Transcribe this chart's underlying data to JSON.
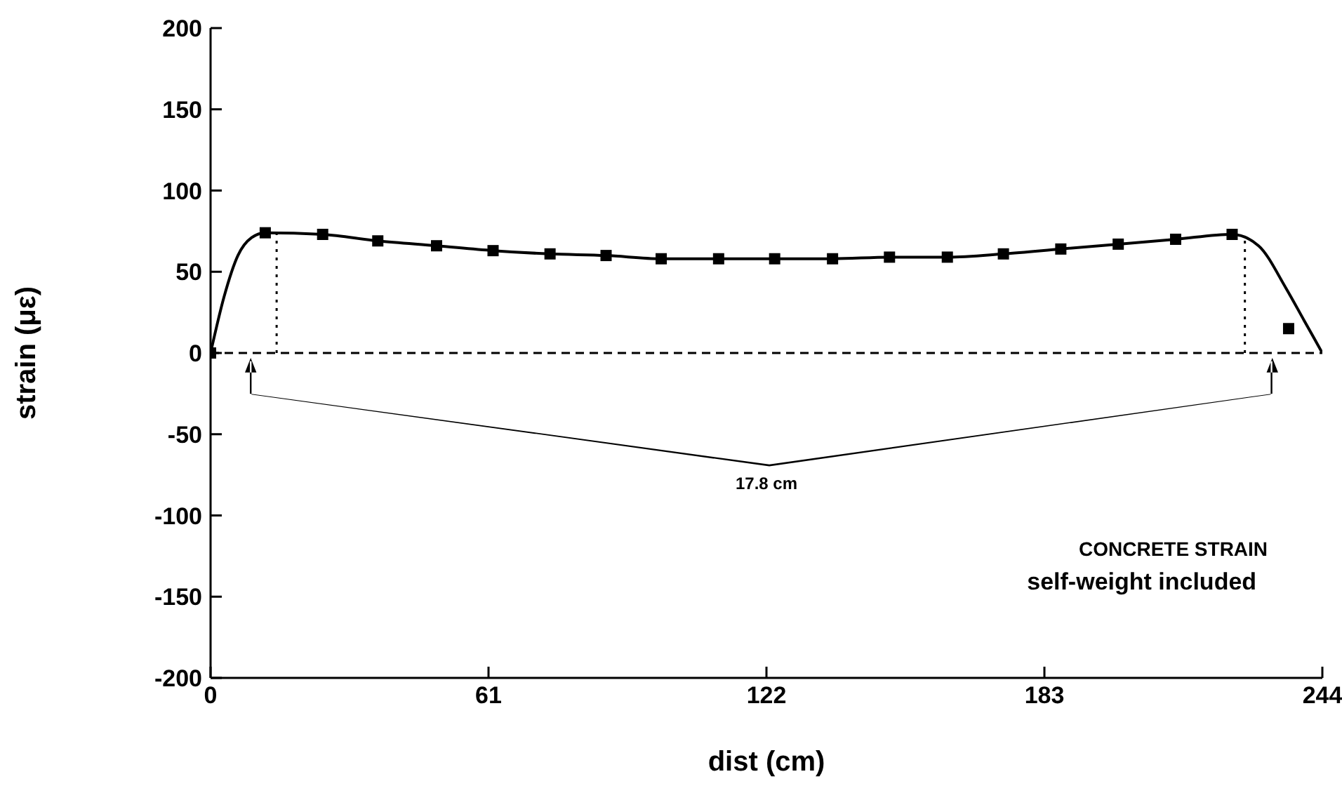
{
  "chart_data": {
    "type": "line",
    "xlabel": "dist (cm)",
    "ylabel": "strain (με)",
    "xlim": [
      0,
      244
    ],
    "ylim": [
      -200,
      200
    ],
    "xticks": [
      0,
      61,
      122,
      183,
      244
    ],
    "yticks": [
      -200,
      -150,
      -100,
      -50,
      0,
      50,
      100,
      150,
      200
    ],
    "series": [
      {
        "type": "line",
        "color": "#000000",
        "marker": "none",
        "line_style": "solid",
        "x": [
          0,
          3,
          6,
          9,
          12,
          24.6,
          36.7,
          49.6,
          62,
          74.5,
          86.8,
          98.9,
          111.5,
          123.8,
          136.5,
          149,
          161.7,
          174,
          186.6,
          199.2,
          211.8,
          224.2,
          230,
          236,
          240,
          244
        ],
        "values": [
          0,
          35,
          60,
          71,
          74,
          73,
          69,
          66,
          63,
          61,
          60,
          58,
          58,
          58,
          58,
          59,
          59,
          61,
          64,
          67,
          70,
          73,
          66,
          40,
          20,
          0
        ]
      },
      {
        "type": "scatter",
        "color": "#000000",
        "marker": "square",
        "x": [
          0,
          12,
          24.6,
          36.7,
          49.6,
          62,
          74.5,
          86.8,
          98.9,
          111.5,
          123.8,
          136.5,
          149,
          161.7,
          174,
          186.6,
          199.2,
          211.8,
          224.2,
          236.6
        ],
        "values": [
          0,
          74,
          73,
          69,
          66,
          63,
          61,
          60,
          58,
          58,
          58,
          58,
          59,
          59,
          61,
          64,
          67,
          70,
          73,
          15
        ]
      },
      {
        "type": "line",
        "color": "#000000",
        "marker": "none",
        "line_style": "dotted",
        "x": [
          14.5,
          14.5
        ],
        "values": [
          0,
          74
        ]
      },
      {
        "type": "line",
        "color": "#000000",
        "marker": "none",
        "line_style": "dotted",
        "x": [
          227,
          227
        ],
        "values": [
          0,
          72
        ]
      }
    ],
    "ref_lines": [
      {
        "axis": "y",
        "value": 0,
        "line_style": "dashed",
        "color": "#000000"
      }
    ],
    "annotations": [
      "17.8 cm",
      "CONCRETE STRAIN",
      "self-weight included"
    ]
  }
}
